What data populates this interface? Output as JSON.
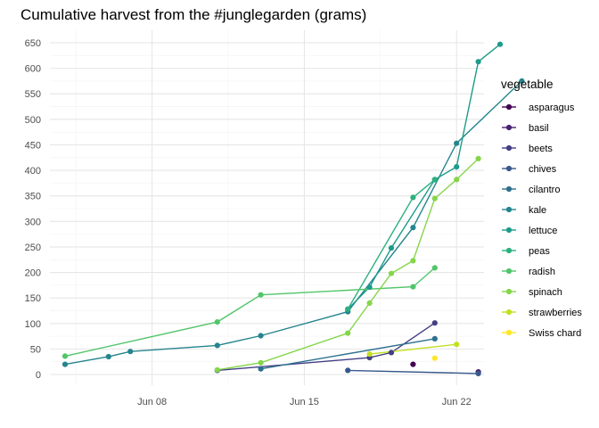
{
  "chart_data": {
    "type": "line",
    "title": "Cumulative harvest from the #junglegarden (grams)",
    "xlabel": "",
    "ylabel": "",
    "x_ticks": [
      "2020-06-08",
      "2020-06-15",
      "2020-06-22"
    ],
    "x_tick_labels": [
      "Jun 08",
      "Jun 15",
      "Jun 22"
    ],
    "xlim": [
      "2020-06-04",
      "2020-06-25"
    ],
    "y_ticks": [
      0,
      50,
      100,
      150,
      200,
      250,
      300,
      350,
      400,
      450,
      500,
      550,
      600,
      650
    ],
    "ylim": [
      -20,
      675
    ],
    "grid": true,
    "legend": {
      "title": "vegetable",
      "position": "right"
    },
    "series": [
      {
        "name": "asparagus",
        "color": "#440154",
        "points": [
          [
            "2020-06-20",
            20
          ]
        ]
      },
      {
        "name": "basil",
        "color": "#482173",
        "points": [
          [
            "2020-06-23",
            5
          ]
        ]
      },
      {
        "name": "beets",
        "color": "#433E85",
        "points": [
          [
            "2020-06-11",
            8
          ],
          [
            "2020-06-18",
            33
          ],
          [
            "2020-06-19",
            43
          ],
          [
            "2020-06-21",
            101
          ]
        ]
      },
      {
        "name": "chives",
        "color": "#38598C",
        "points": [
          [
            "2020-06-17",
            8
          ],
          [
            "2020-06-23",
            2
          ]
        ]
      },
      {
        "name": "cilantro",
        "color": "#2D708E",
        "points": [
          [
            "2020-06-13",
            11
          ],
          [
            "2020-06-21",
            70
          ]
        ]
      },
      {
        "name": "kale",
        "color": "#25858E",
        "points": [
          [
            "2020-06-04",
            20
          ],
          [
            "2020-06-06",
            35
          ],
          [
            "2020-06-07",
            45
          ],
          [
            "2020-06-11",
            57
          ],
          [
            "2020-06-13",
            76
          ],
          [
            "2020-06-17",
            123
          ],
          [
            "2020-06-20",
            288
          ],
          [
            "2020-06-22",
            453
          ],
          [
            "2020-06-25",
            575
          ]
        ]
      },
      {
        "name": "lettuce",
        "color": "#1E9B8A",
        "points": [
          [
            "2020-06-17",
            128
          ],
          [
            "2020-06-18",
            171
          ],
          [
            "2020-06-19",
            248
          ],
          [
            "2020-06-21",
            382
          ],
          [
            "2020-06-22",
            407
          ],
          [
            "2020-06-23",
            613
          ],
          [
            "2020-06-24",
            647
          ]
        ]
      },
      {
        "name": "peas",
        "color": "#2BB07F",
        "points": [
          [
            "2020-06-17",
            128
          ],
          [
            "2020-06-20",
            347
          ],
          [
            "2020-06-21",
            382
          ]
        ]
      },
      {
        "name": "radish",
        "color": "#51C56A",
        "points": [
          [
            "2020-06-04",
            36
          ],
          [
            "2020-06-11",
            103
          ],
          [
            "2020-06-13",
            156
          ],
          [
            "2020-06-20",
            172
          ],
          [
            "2020-06-21",
            209
          ]
        ]
      },
      {
        "name": "spinach",
        "color": "#85D54A",
        "points": [
          [
            "2020-06-11",
            9
          ],
          [
            "2020-06-13",
            23
          ],
          [
            "2020-06-17",
            81
          ],
          [
            "2020-06-18",
            140
          ],
          [
            "2020-06-19",
            198
          ],
          [
            "2020-06-20",
            223
          ],
          [
            "2020-06-21",
            345
          ],
          [
            "2020-06-22",
            382
          ],
          [
            "2020-06-23",
            423
          ]
        ]
      },
      {
        "name": "strawberries",
        "color": "#C2DF23",
        "points": [
          [
            "2020-06-18",
            40
          ],
          [
            "2020-06-22",
            59
          ]
        ]
      },
      {
        "name": "Swiss chard",
        "color": "#FDE725",
        "points": [
          [
            "2020-06-21",
            32
          ]
        ]
      }
    ]
  }
}
